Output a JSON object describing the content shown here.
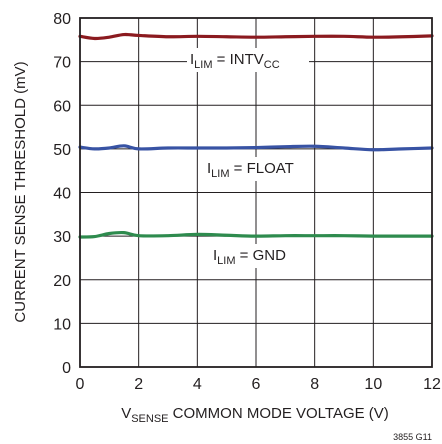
{
  "chart_data": {
    "type": "line",
    "title": "",
    "xlabel": {
      "main": "V",
      "sub": "SENSE",
      "rest": " COMMON MODE VOLTAGE (V)"
    },
    "ylabel": "CURRENT SENSE THRESHOLD (mV)",
    "xlim": [
      0,
      12
    ],
    "ylim": [
      0,
      80
    ],
    "xticks": [
      "0",
      "2",
      "4",
      "6",
      "8",
      "10",
      "12"
    ],
    "yticks": [
      "0",
      "10",
      "20",
      "30",
      "40",
      "50",
      "60",
      "70",
      "80"
    ],
    "grid": true,
    "x": [
      0,
      0.5,
      1,
      1.5,
      2,
      3,
      4,
      5,
      6,
      7,
      8,
      9,
      10,
      11,
      12
    ],
    "series": [
      {
        "label": {
          "main": "I",
          "sub": "LIM",
          "mid": " = INTV",
          "sub2": "CC"
        },
        "color": "#8b1a1f",
        "values": [
          75.8,
          75.3,
          75.6,
          76.2,
          76.0,
          75.7,
          75.8,
          75.7,
          75.6,
          75.7,
          75.8,
          75.8,
          75.6,
          75.7,
          75.9
        ]
      },
      {
        "label": {
          "main": "I",
          "sub": "LIM",
          "mid": " = FLOAT",
          "sub2": ""
        },
        "color": "#3853a4",
        "values": [
          50.4,
          50.0,
          50.2,
          50.7,
          50.0,
          50.2,
          50.2,
          50.2,
          50.3,
          50.5,
          50.6,
          50.2,
          49.8,
          50.0,
          50.2
        ]
      },
      {
        "label": {
          "main": "I",
          "sub": "LIM",
          "mid": " = GND",
          "sub2": ""
        },
        "color": "#2e8b4e",
        "values": [
          29.8,
          29.9,
          30.6,
          30.8,
          30.1,
          30.1,
          30.4,
          30.2,
          30.0,
          30.1,
          30.1,
          30.1,
          30.0,
          30.0,
          30.0
        ]
      }
    ],
    "figure_id": "3855 G11"
  }
}
